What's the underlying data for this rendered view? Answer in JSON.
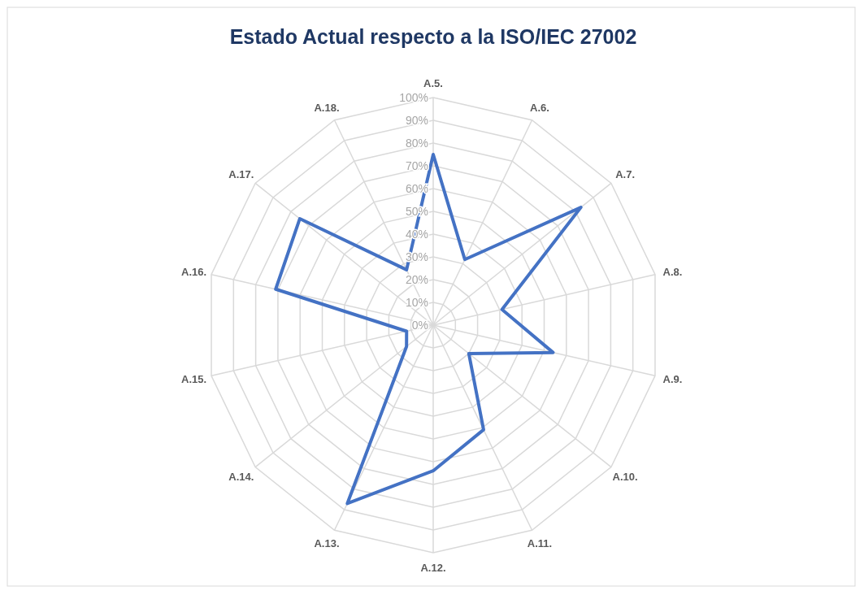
{
  "chart_data": {
    "type": "radar",
    "title": "Estado Actual respecto a la ISO/IEC 27002",
    "categories": [
      "A.5.",
      "A.6.",
      "A.7.",
      "A.8.",
      "A.9.",
      "A.10.",
      "A.11.",
      "A.12.",
      "A.13.",
      "A.14.",
      "A.15.",
      "A.16.",
      "A.17.",
      "A.18."
    ],
    "series": [
      {
        "color": "#4472c4",
        "values": [
          75,
          32,
          83,
          31,
          54,
          20,
          51,
          64,
          87,
          15,
          12,
          71,
          75,
          27
        ]
      }
    ],
    "ylim": [
      0,
      100
    ],
    "yticks": [
      {
        "value": 0,
        "label": "0%"
      },
      {
        "value": 10,
        "label": "10%"
      },
      {
        "value": 20,
        "label": "20%"
      },
      {
        "value": 30,
        "label": "30%"
      },
      {
        "value": 40,
        "label": "40%"
      },
      {
        "value": 50,
        "label": "50%"
      },
      {
        "value": 60,
        "label": "60%"
      },
      {
        "value": 70,
        "label": "70%"
      },
      {
        "value": 80,
        "label": "80%"
      },
      {
        "value": 90,
        "label": "90%"
      },
      {
        "value": 100,
        "label": "100%"
      }
    ],
    "grid": true,
    "marker": "none",
    "line_style": "solid"
  }
}
